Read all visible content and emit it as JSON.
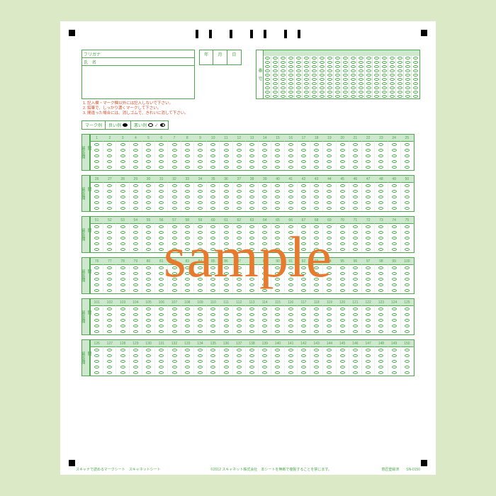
{
  "labels": {
    "furigana": "フリガナ",
    "name": "氏　名",
    "year": "年",
    "month": "月",
    "day": "日",
    "idlabel": "番　号",
    "side_q": "問",
    "side_a": "解答欄",
    "mark_title": "マーク例",
    "good": "良い例",
    "bad": "悪い例"
  },
  "notes": [
    "1. 記入欄・マーク欄以外には記入しないで下さい。",
    "2. 鉛筆で、しっかり濃くマークして下さい。",
    "3. 間違った場合には、消しゴムで、きれいに消して下さい。"
  ],
  "id_digits": 20,
  "id_rows": 10,
  "blocks": [
    {
      "start": 1,
      "end": 25
    },
    {
      "start": 26,
      "end": 50
    },
    {
      "start": 51,
      "end": 75
    },
    {
      "start": 76,
      "end": 100
    },
    {
      "start": 101,
      "end": 125
    },
    {
      "start": 126,
      "end": 150
    }
  ],
  "choices_per_q": 5,
  "watermark": "sample",
  "footer": {
    "left": "スキャナで読めるマークシート　スキャネットシート",
    "center": "©2012 スキャネット株式会社　本シートを無断で複製することを禁じます。",
    "right": "意匠登録済　　SN-0150"
  },
  "colors": {
    "green": "#4ea84e",
    "pale": "#cde8cd",
    "bg": "#dce9c6",
    "watermark": "#e67a2e",
    "notes": "#d34a2a"
  }
}
